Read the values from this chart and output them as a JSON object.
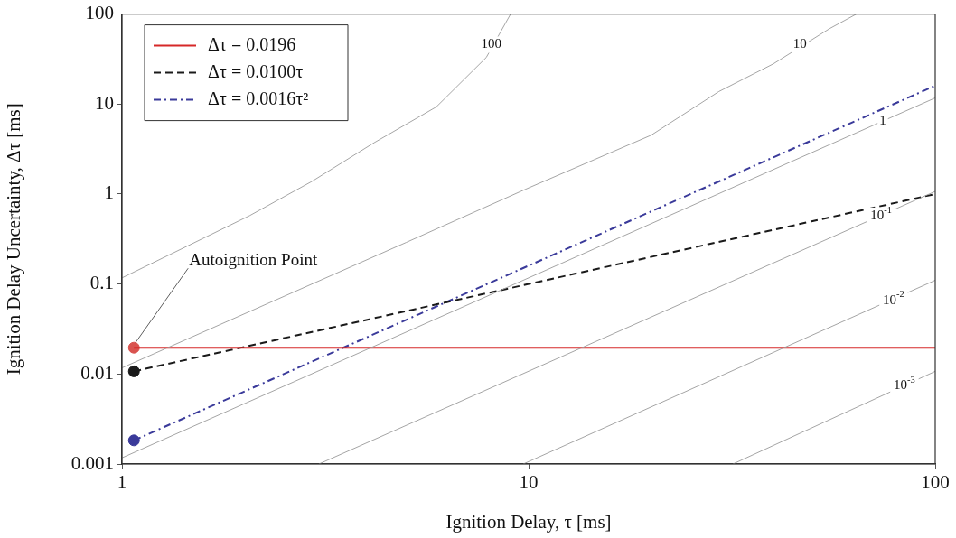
{
  "chart_data": {
    "type": "line",
    "xlabel": "Ignition Delay, τ [ms]",
    "ylabel": "Ignition Delay Uncertainty, Δτ [ms]",
    "log": "xy",
    "grid": false,
    "legend": "top left",
    "xlim": [
      1,
      100
    ],
    "xticks": [
      1,
      10,
      100
    ],
    "ylim": [
      0.001,
      100
    ],
    "yticks": [
      0.001,
      0.01,
      0.1,
      1,
      10,
      100
    ],
    "series": [
      {
        "color": "#9a9a9a",
        "line_style": "solid",
        "x": [
          31.8,
          100
        ],
        "values": [
          0.001,
          0.0107
        ]
      },
      {
        "color": "#9a9a9a",
        "line_style": "solid",
        "x": [
          9.7,
          100
        ],
        "values": [
          0.001,
          0.11
        ]
      },
      {
        "color": "#9a9a9a",
        "line_style": "solid",
        "x": [
          3.05,
          100
        ],
        "values": [
          0.001,
          1.07
        ]
      },
      {
        "color": "#9a9a9a",
        "line_style": "solid",
        "x": [
          1,
          100
        ],
        "values": [
          0.00117,
          11.7
        ]
      },
      {
        "color": "#9a9a9a",
        "line_style": "solid",
        "x": [
          1,
          5,
          10,
          20,
          29.4,
          40,
          55,
          64
        ],
        "values": [
          0.0117,
          0.29,
          1.17,
          4.5,
          13.8,
          28,
          69,
          100
        ]
      },
      {
        "color": "#9a9a9a",
        "line_style": "solid",
        "x": [
          1,
          1.445,
          2.06,
          2.93,
          4.17,
          5.93,
          7.87,
          9.03
        ],
        "values": [
          0.117,
          0.263,
          0.575,
          1.38,
          3.72,
          9.3,
          33,
          100
        ]
      },
      {
        "name": "Δτ = 0.0196",
        "color": "#d62828",
        "line_style": "solid",
        "x": [
          1.07,
          100
        ],
        "values": [
          0.0196,
          0.0196
        ]
      },
      {
        "name": "Δτ = 0.0100τ",
        "color": "#1a1a1a",
        "line_style": "dashed",
        "x": [
          1.07,
          100
        ],
        "values": [
          0.0107,
          1
        ]
      },
      {
        "name": "Δτ = 0.0016τ²",
        "color": "#3a3a9a",
        "line_style": "dashdot",
        "x": [
          1.07,
          100
        ],
        "values": [
          0.00183,
          16
        ]
      },
      {
        "type": "scatter",
        "marker": "circle",
        "colors": [
          "#d9534f",
          "#1a1a1a",
          "#3a3a9a"
        ],
        "x": [
          1.07,
          1.07,
          1.07
        ],
        "values": [
          0.0196,
          0.0107,
          0.00183
        ]
      }
    ],
    "annotations": [
      {
        "text": "Autoignition Point",
        "x": 1.07,
        "y": 0.0196
      },
      {
        "text": "100",
        "x": 8.1,
        "y": 45.7
      },
      {
        "text": "10",
        "x": 46.5,
        "y": 45.7
      },
      {
        "text": "1",
        "x": 74.3,
        "y": 6.46
      },
      {
        "text": "10$^{-1}$",
        "x": 73.6,
        "y": 0.575
      },
      {
        "text": "10$^{-2}$",
        "x": 79,
        "y": 0.066
      },
      {
        "text": "10$^{-3}$",
        "x": 84,
        "y": 0.0074
      }
    ]
  }
}
